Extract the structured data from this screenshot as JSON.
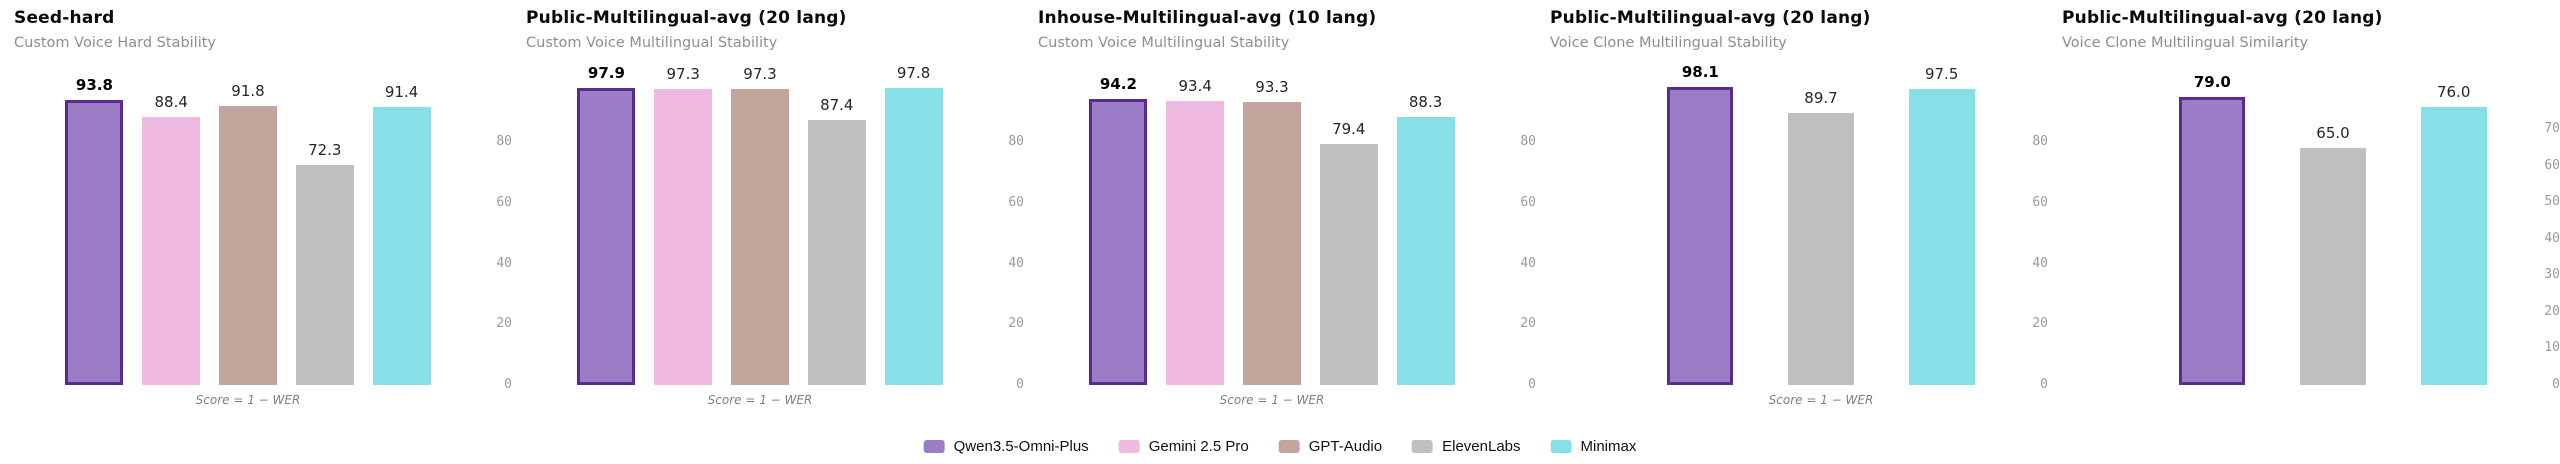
{
  "models": [
    {
      "name": "Qwen3.5-Omni-Plus",
      "color": "#9b7dc8",
      "border_color": "#5b2c90"
    },
    {
      "name": "Gemini 2.5 Pro",
      "color": "#efb9e2"
    },
    {
      "name": "GPT-Audio",
      "color": "#c3a59d"
    },
    {
      "name": "ElevenLabs",
      "color": "#bfbfbf"
    },
    {
      "name": "Minimax",
      "color": "#87dfe8"
    }
  ],
  "chart_data": [
    {
      "type": "bar",
      "title": "Seed-hard",
      "subtitle": "Custom Voice Hard Stability",
      "footnote": "Score = 1 − WER",
      "ylim": [
        0,
        107
      ],
      "yticks": [
        0,
        20,
        40,
        60,
        80
      ],
      "grid": false,
      "series": [
        {
          "name": "Qwen3.5-Omni-Plus",
          "value": 93.8,
          "highlighted": true
        },
        {
          "name": "Gemini 2.5 Pro",
          "value": 88.4
        },
        {
          "name": "GPT-Audio",
          "value": 91.8
        },
        {
          "name": "ElevenLabs",
          "value": 72.3
        },
        {
          "name": "Minimax",
          "value": 91.4
        }
      ]
    },
    {
      "type": "bar",
      "title": "Public-Multilingual-avg (20 lang)",
      "subtitle": "Custom Voice Multilingual Stability",
      "footnote": "Score = 1 − WER",
      "ylim": [
        0,
        107
      ],
      "yticks": [
        0,
        20,
        40,
        60,
        80
      ],
      "grid": false,
      "series": [
        {
          "name": "Qwen3.5-Omni-Plus",
          "value": 97.9,
          "highlighted": true
        },
        {
          "name": "Gemini 2.5 Pro",
          "value": 97.3
        },
        {
          "name": "GPT-Audio",
          "value": 97.3
        },
        {
          "name": "ElevenLabs",
          "value": 87.4
        },
        {
          "name": "Minimax",
          "value": 97.8
        }
      ]
    },
    {
      "type": "bar",
      "title": "Inhouse-Multilingual-avg (10 lang)",
      "subtitle": "Custom Voice Multilingual Stability",
      "footnote": "Score = 1 − WER",
      "ylim": [
        0,
        107
      ],
      "yticks": [
        0,
        20,
        40,
        60,
        80
      ],
      "grid": false,
      "series": [
        {
          "name": "Qwen3.5-Omni-Plus",
          "value": 94.2,
          "highlighted": true
        },
        {
          "name": "Gemini 2.5 Pro",
          "value": 93.4
        },
        {
          "name": "GPT-Audio",
          "value": 93.3
        },
        {
          "name": "ElevenLabs",
          "value": 79.4
        },
        {
          "name": "Minimax",
          "value": 88.3
        }
      ]
    },
    {
      "type": "bar",
      "title": "Public-Multilingual-avg (20 lang)",
      "subtitle": "Voice Clone Multilingual Stability",
      "footnote": "Score = 1 − WER",
      "ylim": [
        0,
        107
      ],
      "yticks": [
        0,
        20,
        40,
        60,
        80
      ],
      "grid": false,
      "series": [
        {
          "name": "Qwen3.5-Omni-Plus",
          "value": 98.1,
          "highlighted": true
        },
        {
          "name": "ElevenLabs",
          "value": 89.7
        },
        {
          "name": "Minimax",
          "value": 97.5
        }
      ]
    },
    {
      "type": "bar",
      "title": "Public-Multilingual-avg (20 lang)",
      "subtitle": "Voice Clone Multilingual Similarity",
      "footnote": "",
      "ylim": [
        0,
        89
      ],
      "yticks": [
        0,
        10,
        20,
        30,
        40,
        50,
        60,
        70
      ],
      "grid": false,
      "series": [
        {
          "name": "Qwen3.5-Omni-Plus",
          "value": 79.0,
          "highlighted": true
        },
        {
          "name": "ElevenLabs",
          "value": 65.0
        },
        {
          "name": "Minimax",
          "value": 76.0
        }
      ]
    }
  ]
}
